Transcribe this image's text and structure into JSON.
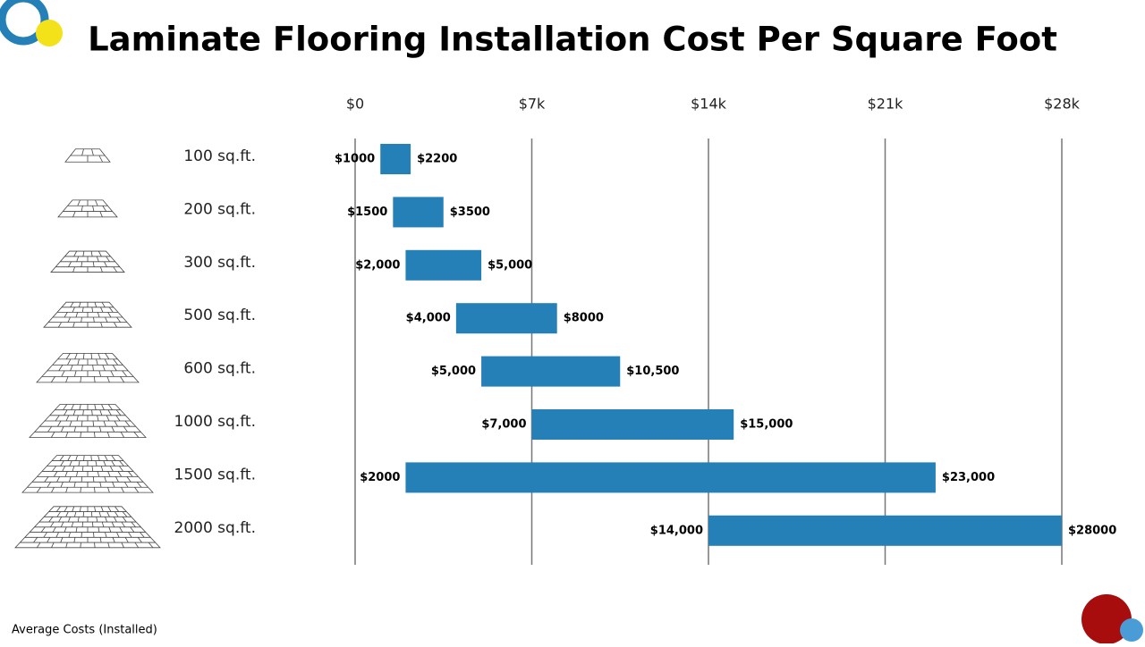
{
  "chart_data": {
    "type": "floating-bar",
    "title": "Laminate Flooring Installation Cost Per Square Foot",
    "categories": [
      "100 sq.ft.",
      "200 sq.ft.",
      "300 sq.ft.",
      "500 sq.ft.",
      "600 sq.ft.",
      "1000 sq.ft.",
      "1500 sq.ft.",
      "2000 sq.ft."
    ],
    "low": {
      "values": [
        1000,
        1500,
        2000,
        4000,
        5000,
        7000,
        2000,
        14000
      ],
      "value_labels": [
        "$1000",
        "$1500",
        "$2,000",
        "$4,000",
        "$5,000",
        "$7,000",
        "$2000",
        "$14,000"
      ]
    },
    "high": {
      "values": [
        2200,
        3500,
        5000,
        8000,
        10500,
        15000,
        23000,
        28000
      ],
      "value_labels": [
        "$2200",
        "$3500",
        "$5,000",
        "$8000",
        "$10,500",
        "$15,000",
        "$23,000",
        "$28000"
      ]
    },
    "color": "#2580b7",
    "xlim": [
      0,
      28000
    ],
    "xticks": [
      {
        "value": 0,
        "label": "$0"
      },
      {
        "value": 7000,
        "label": "$7k"
      },
      {
        "value": 14000,
        "label": "$14k"
      },
      {
        "value": 21000,
        "label": "$21k"
      },
      {
        "value": 28000,
        "label": "$28k"
      }
    ],
    "grid": true,
    "footnote": "Average Costs (Installed)"
  }
}
